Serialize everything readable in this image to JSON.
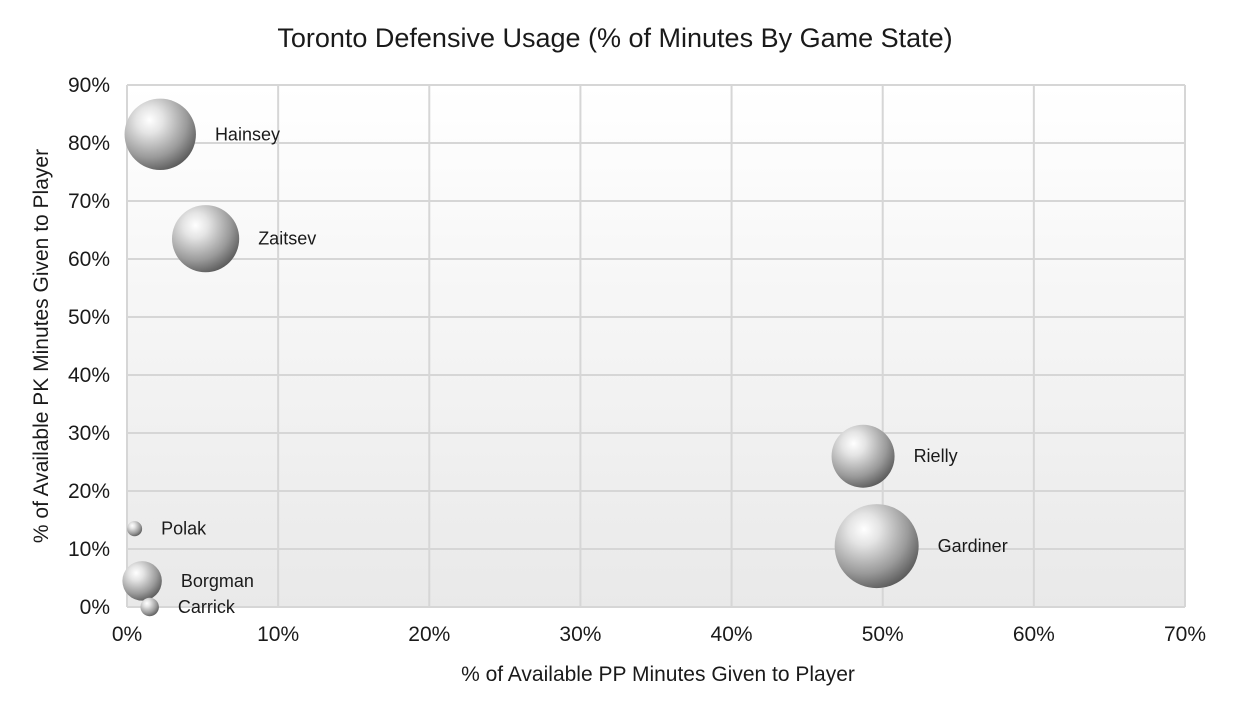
{
  "chart_data": {
    "type": "bubble",
    "title": "Toronto Defensive Usage (% of Minutes By Game State)",
    "xlabel": "% of Available PP Minutes Given to Player",
    "ylabel": "% of Available PK Minutes Given to Player",
    "xlim": [
      0,
      70
    ],
    "ylim": [
      0,
      90
    ],
    "x_ticks": [
      {
        "value": 0,
        "label": "0%"
      },
      {
        "value": 10,
        "label": "10%"
      },
      {
        "value": 20,
        "label": "20%"
      },
      {
        "value": 30,
        "label": "30%"
      },
      {
        "value": 40,
        "label": "40%"
      },
      {
        "value": 50,
        "label": "50%"
      },
      {
        "value": 60,
        "label": "60%"
      },
      {
        "value": 70,
        "label": "70%"
      }
    ],
    "y_ticks": [
      {
        "value": 0,
        "label": "0%"
      },
      {
        "value": 10,
        "label": "10%"
      },
      {
        "value": 20,
        "label": "20%"
      },
      {
        "value": 30,
        "label": "30%"
      },
      {
        "value": 40,
        "label": "40%"
      },
      {
        "value": 50,
        "label": "50%"
      },
      {
        "value": 60,
        "label": "60%"
      },
      {
        "value": 70,
        "label": "70%"
      },
      {
        "value": 80,
        "label": "80%"
      },
      {
        "value": 90,
        "label": "90%"
      }
    ],
    "grid": true,
    "points": [
      {
        "label": "Hainsey",
        "x": 2.2,
        "y": 81.5,
        "size": 0.85
      },
      {
        "label": "Zaitsev",
        "x": 5.2,
        "y": 63.5,
        "size": 0.8
      },
      {
        "label": "Rielly",
        "x": 48.7,
        "y": 26.0,
        "size": 0.75
      },
      {
        "label": "Gardiner",
        "x": 49.6,
        "y": 10.5,
        "size": 1.0
      },
      {
        "label": "Polak",
        "x": 0.5,
        "y": 13.5,
        "size": 0.18
      },
      {
        "label": "Borgman",
        "x": 1.0,
        "y": 4.5,
        "size": 0.47
      },
      {
        "label": "Carrick",
        "x": 1.5,
        "y": 0.0,
        "size": 0.22
      }
    ]
  }
}
